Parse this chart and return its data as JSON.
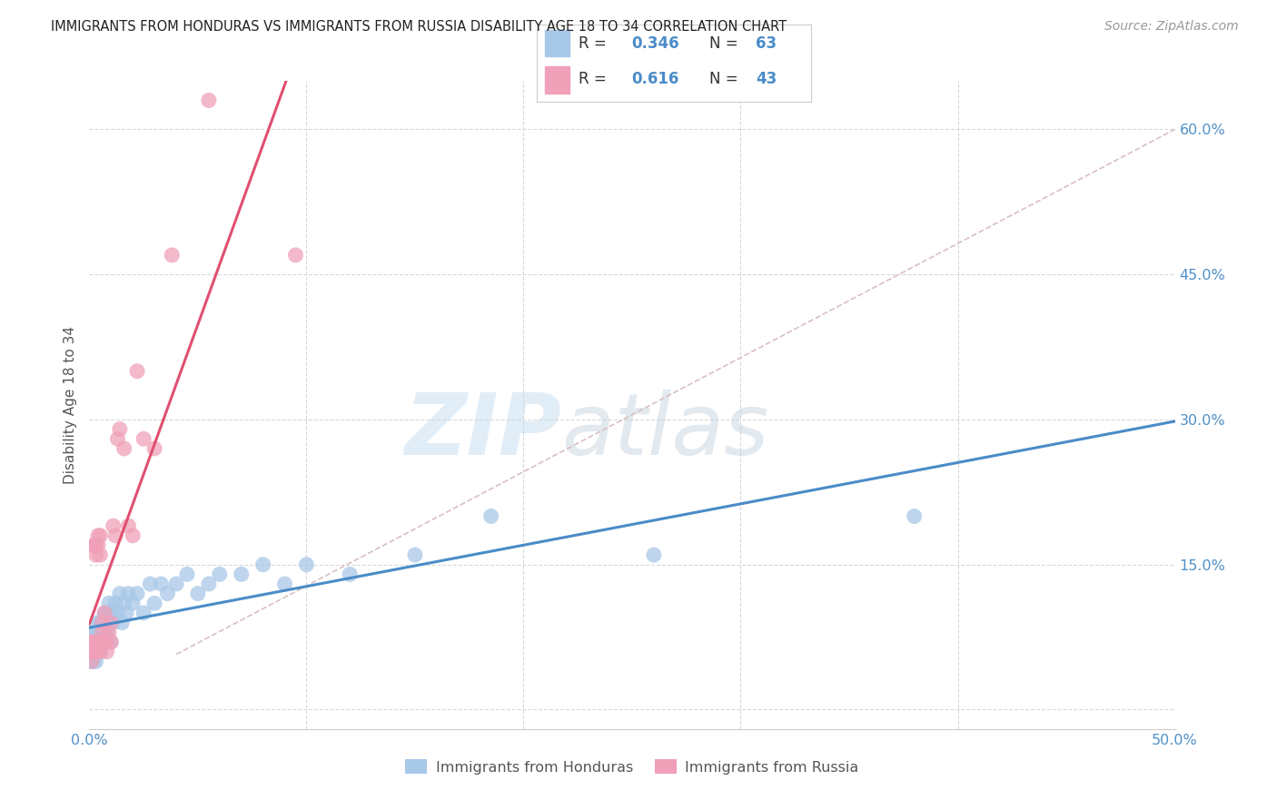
{
  "title": "IMMIGRANTS FROM HONDURAS VS IMMIGRANTS FROM RUSSIA DISABILITY AGE 18 TO 34 CORRELATION CHART",
  "source": "Source: ZipAtlas.com",
  "ylabel": "Disability Age 18 to 34",
  "xlim": [
    0.0,
    0.5
  ],
  "ylim": [
    -0.02,
    0.65
  ],
  "xticks": [
    0.0,
    0.1,
    0.2,
    0.3,
    0.4,
    0.5
  ],
  "xtick_labels": [
    "0.0%",
    "",
    "",
    "",
    "",
    "50.0%"
  ],
  "yticks": [
    0.0,
    0.15,
    0.3,
    0.45,
    0.6
  ],
  "ytick_labels": [
    "",
    "15.0%",
    "30.0%",
    "45.0%",
    "60.0%"
  ],
  "background_color": "#ffffff",
  "grid_color": "#d8d8d8",
  "watermark_zip": "ZIP",
  "watermark_atlas": "atlas",
  "series1_color": "#a8c8e8",
  "series2_color": "#f0a0b8",
  "line1_color": "#4a8cc8",
  "line2_color": "#e05070",
  "diag_color": "#d8c0c0",
  "honduras_x": [
    0.001,
    0.001,
    0.001,
    0.001,
    0.001,
    0.002,
    0.002,
    0.002,
    0.002,
    0.002,
    0.003,
    0.003,
    0.003,
    0.003,
    0.003,
    0.004,
    0.004,
    0.004,
    0.004,
    0.005,
    0.005,
    0.005,
    0.006,
    0.006,
    0.006,
    0.007,
    0.007,
    0.007,
    0.008,
    0.008,
    0.009,
    0.009,
    0.01,
    0.01,
    0.011,
    0.012,
    0.013,
    0.014,
    0.015,
    0.016,
    0.017,
    0.018,
    0.02,
    0.022,
    0.025,
    0.028,
    0.03,
    0.033,
    0.036,
    0.04,
    0.045,
    0.05,
    0.055,
    0.06,
    0.07,
    0.08,
    0.09,
    0.1,
    0.12,
    0.15,
    0.185,
    0.26,
    0.38
  ],
  "honduras_y": [
    0.06,
    0.05,
    0.07,
    0.06,
    0.05,
    0.06,
    0.05,
    0.07,
    0.06,
    0.08,
    0.06,
    0.05,
    0.07,
    0.06,
    0.08,
    0.07,
    0.08,
    0.06,
    0.09,
    0.07,
    0.06,
    0.09,
    0.08,
    0.07,
    0.09,
    0.08,
    0.1,
    0.09,
    0.08,
    0.1,
    0.09,
    0.11,
    0.07,
    0.1,
    0.09,
    0.11,
    0.1,
    0.12,
    0.09,
    0.11,
    0.1,
    0.12,
    0.11,
    0.12,
    0.1,
    0.13,
    0.11,
    0.13,
    0.12,
    0.13,
    0.14,
    0.12,
    0.13,
    0.14,
    0.14,
    0.15,
    0.13,
    0.15,
    0.14,
    0.16,
    0.2,
    0.16,
    0.2
  ],
  "russia_x": [
    0.001,
    0.001,
    0.001,
    0.001,
    0.002,
    0.002,
    0.002,
    0.002,
    0.003,
    0.003,
    0.003,
    0.003,
    0.004,
    0.004,
    0.004,
    0.004,
    0.005,
    0.005,
    0.005,
    0.005,
    0.006,
    0.006,
    0.006,
    0.007,
    0.007,
    0.008,
    0.008,
    0.009,
    0.01,
    0.01,
    0.011,
    0.012,
    0.013,
    0.014,
    0.016,
    0.018,
    0.02,
    0.022,
    0.025,
    0.03,
    0.038,
    0.055,
    0.095
  ],
  "russia_y": [
    0.06,
    0.05,
    0.07,
    0.06,
    0.17,
    0.17,
    0.06,
    0.07,
    0.16,
    0.17,
    0.06,
    0.07,
    0.07,
    0.17,
    0.18,
    0.06,
    0.07,
    0.18,
    0.16,
    0.06,
    0.09,
    0.07,
    0.08,
    0.07,
    0.1,
    0.07,
    0.06,
    0.08,
    0.07,
    0.09,
    0.19,
    0.18,
    0.28,
    0.29,
    0.27,
    0.19,
    0.18,
    0.35,
    0.28,
    0.27,
    0.47,
    0.63,
    0.47
  ]
}
